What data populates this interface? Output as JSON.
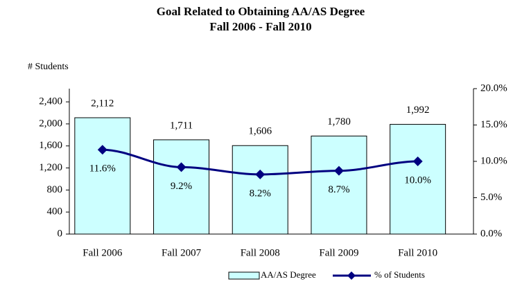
{
  "chart_data": {
    "type": "bar",
    "title": "Goal Related to Obtaining AA/AS Degree",
    "subtitle": "Fall 2006 - Fall 2010",
    "y_label": "# Students",
    "categories": [
      "Fall 2006",
      "Fall 2007",
      "Fall 2008",
      "Fall 2009",
      "Fall 2010"
    ],
    "series": [
      {
        "name": "AA/AS Degree",
        "type": "bar",
        "color": "#ccffff",
        "values": [
          2112,
          1711,
          1606,
          1780,
          1992
        ],
        "value_labels": [
          "2,112",
          "1,711",
          "1,606",
          "1,780",
          "1,992"
        ]
      },
      {
        "name": "% of Students",
        "type": "line",
        "axis": "y2",
        "color": "#000080",
        "values": [
          11.6,
          9.2,
          8.2,
          8.7,
          10.0
        ],
        "value_labels": [
          "11.6%",
          "9.2%",
          "8.2%",
          "8.7%",
          "10.0%"
        ]
      }
    ],
    "ylim": [
      0,
      2640
    ],
    "yticks": [
      0,
      400,
      800,
      {
        "value": 1200,
        "label": "1,200"
      },
      {
        "value": 1600,
        "label": "1,600"
      },
      {
        "value": 2000,
        "label": "2,000"
      },
      {
        "value": 2400,
        "label": "2,400"
      }
    ],
    "y2lim": [
      0,
      20
    ],
    "y2ticks": [
      {
        "value": 0,
        "label": "0.0%"
      },
      {
        "value": 5,
        "label": "5.0%"
      },
      {
        "value": 10,
        "label": "10.0%"
      },
      {
        "value": 15,
        "label": "15.0%"
      },
      {
        "value": 20,
        "label": "20.0%"
      }
    ],
    "legend": "bottom"
  }
}
